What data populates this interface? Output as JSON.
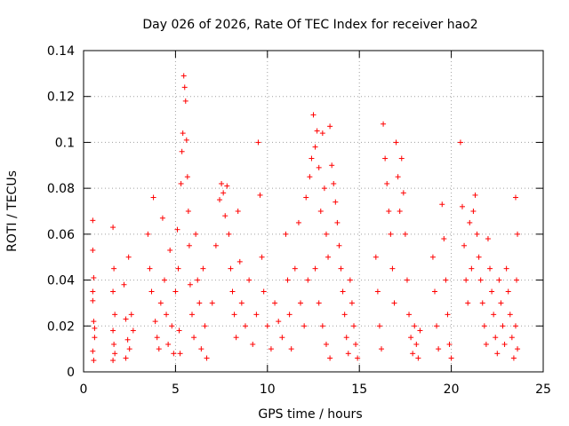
{
  "chart_data": {
    "type": "scatter",
    "title": "Day 026 of 2026, Rate Of TEC Index for receiver hao2",
    "xlabel": "GPS time / hours",
    "ylabel": "ROTI / TECUs",
    "xlim": [
      0,
      25
    ],
    "ylim": [
      0,
      0.14
    ],
    "xticks": [
      "0",
      "5",
      "10",
      "15",
      "20",
      "25"
    ],
    "yticks": [
      "0",
      "0.02",
      "0.04",
      "0.06",
      "0.08",
      "0.1",
      "0.12",
      "0.14"
    ],
    "grid": true,
    "marker": "+",
    "color": "#ff0000",
    "series": [
      {
        "points": [
          [
            0.5,
            0.066
          ],
          [
            0.5,
            0.053
          ],
          [
            0.55,
            0.041
          ],
          [
            0.5,
            0.031
          ],
          [
            0.55,
            0.022
          ],
          [
            0.6,
            0.015
          ],
          [
            0.5,
            0.009
          ],
          [
            0.55,
            0.005
          ],
          [
            0.6,
            0.019
          ],
          [
            0.5,
            0.035
          ],
          [
            1.6,
            0.063
          ],
          [
            1.65,
            0.045
          ],
          [
            1.6,
            0.035
          ],
          [
            1.7,
            0.025
          ],
          [
            1.6,
            0.018
          ],
          [
            1.65,
            0.012
          ],
          [
            1.7,
            0.008
          ],
          [
            1.6,
            0.005
          ],
          [
            2.2,
            0.038
          ],
          [
            2.3,
            0.023
          ],
          [
            2.4,
            0.014
          ],
          [
            2.5,
            0.01
          ],
          [
            2.6,
            0.025
          ],
          [
            2.45,
            0.05
          ],
          [
            2.3,
            0.006
          ],
          [
            2.7,
            0.018
          ],
          [
            3.5,
            0.06
          ],
          [
            3.6,
            0.045
          ],
          [
            3.7,
            0.035
          ],
          [
            3.8,
            0.076
          ],
          [
            3.9,
            0.022
          ],
          [
            4.0,
            0.015
          ],
          [
            4.1,
            0.01
          ],
          [
            4.2,
            0.03
          ],
          [
            4.3,
            0.067
          ],
          [
            4.4,
            0.04
          ],
          [
            4.5,
            0.025
          ],
          [
            4.6,
            0.012
          ],
          [
            4.7,
            0.053
          ],
          [
            4.8,
            0.02
          ],
          [
            4.9,
            0.008
          ],
          [
            5.0,
            0.035
          ],
          [
            5.1,
            0.062
          ],
          [
            5.15,
            0.045
          ],
          [
            5.2,
            0.018
          ],
          [
            5.25,
            0.008
          ],
          [
            5.3,
            0.082
          ],
          [
            5.35,
            0.096
          ],
          [
            5.4,
            0.104
          ],
          [
            5.45,
            0.129
          ],
          [
            5.5,
            0.124
          ],
          [
            5.55,
            0.118
          ],
          [
            5.6,
            0.101
          ],
          [
            5.65,
            0.085
          ],
          [
            5.7,
            0.07
          ],
          [
            5.75,
            0.055
          ],
          [
            5.8,
            0.038
          ],
          [
            5.9,
            0.025
          ],
          [
            6.0,
            0.015
          ],
          [
            6.1,
            0.06
          ],
          [
            6.2,
            0.04
          ],
          [
            6.3,
            0.03
          ],
          [
            6.4,
            0.01
          ],
          [
            6.5,
            0.045
          ],
          [
            6.6,
            0.02
          ],
          [
            6.7,
            0.006
          ],
          [
            7.0,
            0.03
          ],
          [
            7.2,
            0.055
          ],
          [
            7.4,
            0.075
          ],
          [
            7.5,
            0.082
          ],
          [
            7.6,
            0.078
          ],
          [
            7.7,
            0.068
          ],
          [
            7.8,
            0.081
          ],
          [
            7.9,
            0.06
          ],
          [
            8.0,
            0.045
          ],
          [
            8.1,
            0.035
          ],
          [
            8.2,
            0.025
          ],
          [
            8.3,
            0.015
          ],
          [
            8.4,
            0.07
          ],
          [
            8.5,
            0.048
          ],
          [
            8.6,
            0.03
          ],
          [
            8.8,
            0.02
          ],
          [
            9.0,
            0.04
          ],
          [
            9.2,
            0.012
          ],
          [
            9.4,
            0.025
          ],
          [
            9.5,
            0.1
          ],
          [
            9.6,
            0.077
          ],
          [
            9.7,
            0.05
          ],
          [
            9.8,
            0.035
          ],
          [
            10.0,
            0.02
          ],
          [
            10.2,
            0.01
          ],
          [
            10.4,
            0.03
          ],
          [
            10.6,
            0.022
          ],
          [
            10.8,
            0.015
          ],
          [
            11.0,
            0.06
          ],
          [
            11.1,
            0.04
          ],
          [
            11.2,
            0.025
          ],
          [
            11.3,
            0.01
          ],
          [
            11.5,
            0.045
          ],
          [
            11.7,
            0.065
          ],
          [
            11.8,
            0.03
          ],
          [
            12.0,
            0.02
          ],
          [
            12.1,
            0.076
          ],
          [
            12.2,
            0.04
          ],
          [
            12.3,
            0.085
          ],
          [
            12.4,
            0.093
          ],
          [
            12.5,
            0.112
          ],
          [
            12.6,
            0.098
          ],
          [
            12.7,
            0.105
          ],
          [
            12.8,
            0.089
          ],
          [
            12.9,
            0.07
          ],
          [
            13.0,
            0.104
          ],
          [
            13.1,
            0.08
          ],
          [
            13.2,
            0.06
          ],
          [
            13.3,
            0.05
          ],
          [
            13.4,
            0.107
          ],
          [
            13.5,
            0.09
          ],
          [
            13.6,
            0.082
          ],
          [
            13.7,
            0.074
          ],
          [
            13.8,
            0.065
          ],
          [
            13.9,
            0.055
          ],
          [
            14.0,
            0.045
          ],
          [
            14.1,
            0.035
          ],
          [
            14.2,
            0.025
          ],
          [
            14.3,
            0.015
          ],
          [
            14.4,
            0.008
          ],
          [
            14.5,
            0.04
          ],
          [
            14.6,
            0.03
          ],
          [
            14.7,
            0.02
          ],
          [
            14.8,
            0.012
          ],
          [
            14.9,
            0.006
          ],
          [
            12.6,
            0.045
          ],
          [
            12.8,
            0.03
          ],
          [
            13.0,
            0.02
          ],
          [
            13.2,
            0.012
          ],
          [
            13.4,
            0.006
          ],
          [
            15.9,
            0.05
          ],
          [
            16.0,
            0.035
          ],
          [
            16.1,
            0.02
          ],
          [
            16.2,
            0.01
          ],
          [
            16.3,
            0.108
          ],
          [
            16.4,
            0.093
          ],
          [
            16.5,
            0.082
          ],
          [
            16.6,
            0.07
          ],
          [
            16.7,
            0.06
          ],
          [
            16.8,
            0.045
          ],
          [
            16.9,
            0.03
          ],
          [
            17.0,
            0.1
          ],
          [
            17.1,
            0.085
          ],
          [
            17.2,
            0.07
          ],
          [
            17.3,
            0.093
          ],
          [
            17.4,
            0.078
          ],
          [
            17.5,
            0.06
          ],
          [
            17.6,
            0.04
          ],
          [
            17.7,
            0.025
          ],
          [
            17.8,
            0.015
          ],
          [
            17.9,
            0.008
          ],
          [
            18.0,
            0.02
          ],
          [
            18.1,
            0.012
          ],
          [
            18.2,
            0.006
          ],
          [
            18.3,
            0.018
          ],
          [
            19.0,
            0.05
          ],
          [
            19.1,
            0.035
          ],
          [
            19.2,
            0.02
          ],
          [
            19.3,
            0.01
          ],
          [
            19.5,
            0.073
          ],
          [
            19.6,
            0.058
          ],
          [
            19.7,
            0.04
          ],
          [
            19.8,
            0.025
          ],
          [
            19.9,
            0.012
          ],
          [
            20.0,
            0.006
          ],
          [
            20.5,
            0.1
          ],
          [
            20.6,
            0.072
          ],
          [
            20.7,
            0.055
          ],
          [
            20.8,
            0.04
          ],
          [
            20.9,
            0.03
          ],
          [
            21.0,
            0.065
          ],
          [
            21.1,
            0.045
          ],
          [
            21.2,
            0.07
          ],
          [
            21.3,
            0.077
          ],
          [
            21.4,
            0.06
          ],
          [
            21.5,
            0.05
          ],
          [
            21.6,
            0.04
          ],
          [
            21.7,
            0.03
          ],
          [
            21.8,
            0.02
          ],
          [
            21.9,
            0.012
          ],
          [
            22.0,
            0.058
          ],
          [
            22.1,
            0.045
          ],
          [
            22.2,
            0.035
          ],
          [
            22.3,
            0.025
          ],
          [
            22.4,
            0.015
          ],
          [
            22.5,
            0.008
          ],
          [
            22.6,
            0.04
          ],
          [
            22.7,
            0.03
          ],
          [
            22.8,
            0.02
          ],
          [
            22.9,
            0.012
          ],
          [
            23.0,
            0.045
          ],
          [
            23.1,
            0.035
          ],
          [
            23.2,
            0.025
          ],
          [
            23.3,
            0.015
          ],
          [
            23.4,
            0.006
          ],
          [
            23.5,
            0.076
          ],
          [
            23.6,
            0.06
          ],
          [
            23.55,
            0.04
          ],
          [
            23.5,
            0.02
          ],
          [
            23.6,
            0.01
          ]
        ]
      }
    ]
  }
}
